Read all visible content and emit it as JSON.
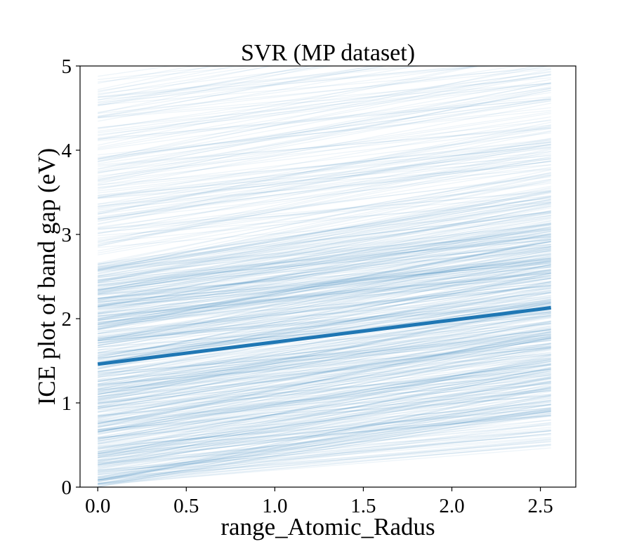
{
  "chart_data": {
    "type": "line",
    "title": "SVR (MP dataset)",
    "xlabel": "range_Atomic_Radus",
    "ylabel": "ICE plot of band gap (eV)",
    "xlim": [
      -0.1,
      2.7
    ],
    "ylim": [
      0,
      5
    ],
    "xticks": [
      0.0,
      0.5,
      1.0,
      1.5,
      2.0,
      2.5
    ],
    "xtick_labels": [
      "0.0",
      "0.5",
      "1.0",
      "1.5",
      "2.0",
      "2.5"
    ],
    "yticks": [
      0,
      1,
      2,
      3,
      4,
      5
    ],
    "ytick_labels": [
      "0",
      "1",
      "2",
      "3",
      "4",
      "5"
    ],
    "grid": false,
    "legend": "none",
    "x_range": [
      0.0,
      2.56
    ],
    "series": [
      {
        "role": "average",
        "color": "#1f77b4",
        "x": [
          0.0,
          2.56
        ],
        "y": [
          1.46,
          2.13
        ]
      }
    ],
    "ice_lines": {
      "color": "#1f77b4",
      "opacity": 0.08,
      "count": 700,
      "start_y_range": [
        0.0,
        4.9
      ],
      "slope_range": [
        0.15,
        0.45
      ],
      "dense_start_range": [
        0.0,
        2.6
      ]
    }
  }
}
